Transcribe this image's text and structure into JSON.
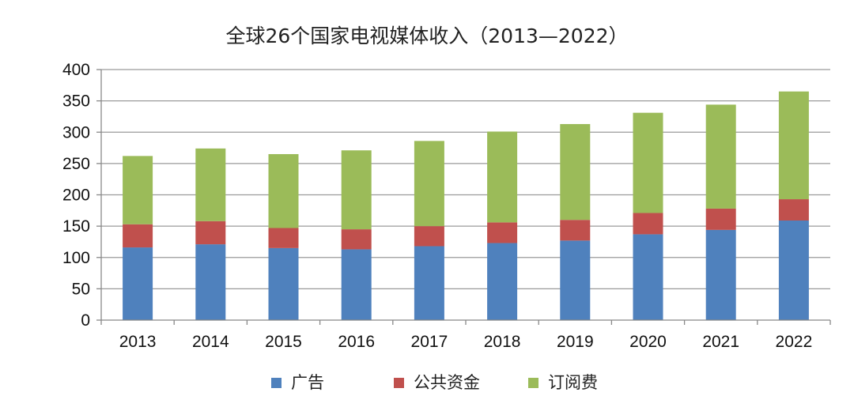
{
  "chart_data": {
    "type": "bar",
    "stacked": true,
    "title": "全球26个国家电视媒体收入（2013—2022）",
    "xlabel": "",
    "ylabel": "",
    "ylim": [
      0,
      400
    ],
    "yticks": [
      0,
      50,
      100,
      150,
      200,
      250,
      300,
      350,
      400
    ],
    "grid": true,
    "legend_position": "bottom",
    "categories": [
      "2013",
      "2014",
      "2015",
      "2016",
      "2017",
      "2018",
      "2019",
      "2020",
      "2021",
      "2022"
    ],
    "series": [
      {
        "name": "广告",
        "color": "#4f81bd",
        "values": [
          116,
          121,
          115,
          113,
          118,
          123,
          127,
          137,
          144,
          159
        ]
      },
      {
        "name": "公共资金",
        "color": "#c0504d",
        "values": [
          37,
          37,
          32,
          32,
          32,
          33,
          33,
          34,
          34,
          34
        ]
      },
      {
        "name": "订阅费",
        "color": "#9bbb59",
        "values": [
          109,
          116,
          118,
          126,
          136,
          145,
          153,
          160,
          166,
          172
        ]
      }
    ]
  }
}
